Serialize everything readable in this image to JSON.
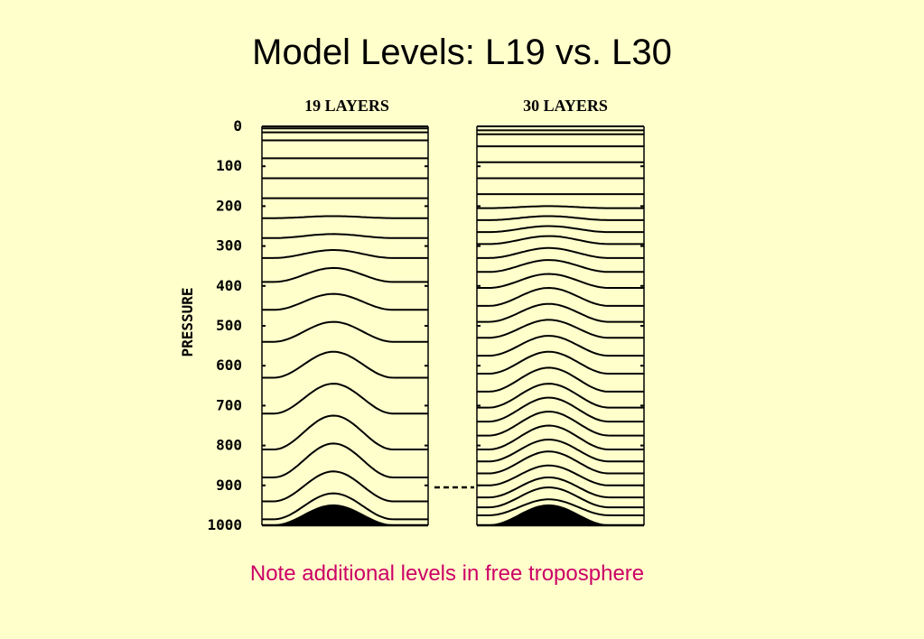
{
  "slide": {
    "title": "Model Levels: L19 vs. L30",
    "note": "Note additional levels in free troposphere"
  },
  "colors": {
    "background": "#ffffcc",
    "note_text": "#cc0066",
    "line": "#000000"
  },
  "diagram": {
    "y_axis_title": "PRESSURE",
    "y_ticks": [
      "0",
      "100",
      "200",
      "300",
      "400",
      "500",
      "600",
      "700",
      "800",
      "900",
      "1000"
    ],
    "y_range": [
      0,
      1000
    ],
    "panels": [
      {
        "title": "19 LAYERS",
        "layers": 19,
        "levels_at_edge": [
          0,
          5,
          15,
          35,
          80,
          130,
          180,
          230,
          280,
          330,
          390,
          460,
          540,
          630,
          720,
          810,
          880,
          940,
          985,
          1000
        ],
        "levels_at_peak": [
          0,
          5,
          15,
          35,
          80,
          130,
          180,
          225,
          270,
          310,
          355,
          420,
          490,
          565,
          645,
          725,
          795,
          865,
          920,
          950
        ]
      },
      {
        "title": "30 LAYERS",
        "layers": 30,
        "levels_at_edge": [
          0,
          10,
          20,
          50,
          90,
          130,
          170,
          205,
          235,
          265,
          295,
          330,
          365,
          405,
          450,
          490,
          530,
          575,
          620,
          665,
          705,
          740,
          775,
          810,
          840,
          870,
          900,
          930,
          955,
          975,
          1000
        ],
        "levels_at_peak": [
          0,
          10,
          20,
          50,
          90,
          130,
          170,
          200,
          225,
          250,
          275,
          305,
          335,
          370,
          405,
          445,
          485,
          525,
          565,
          605,
          645,
          680,
          715,
          750,
          785,
          815,
          850,
          880,
          905,
          935,
          950
        ]
      }
    ]
  }
}
